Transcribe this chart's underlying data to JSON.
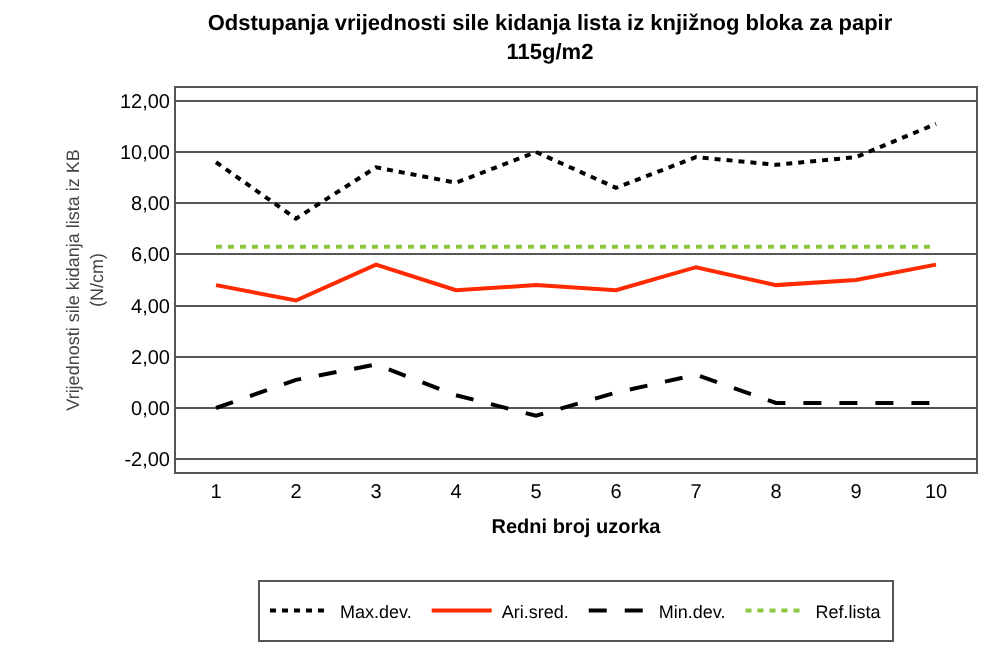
{
  "chart_data": {
    "type": "line",
    "title": "Odstupanja vrijednosti sile kidanja lista iz knjižnog bloka za papir",
    "subtitle": "115g/m2",
    "xlabel": "Redni broj uzorka",
    "ylabel": "Vrijednosti sile kidanja lista iz KB\n(N/cm)",
    "categories": [
      "1",
      "2",
      "3",
      "4",
      "5",
      "6",
      "7",
      "8",
      "9",
      "10"
    ],
    "series": [
      {
        "name": "Max.dev.",
        "color": "#000000",
        "line_style": "dotted",
        "values": [
          9.6,
          7.4,
          9.4,
          8.8,
          10.0,
          8.6,
          9.8,
          9.5,
          9.8,
          11.1
        ]
      },
      {
        "name": "Ari.sred.",
        "color": "#ff2a00",
        "line_style": "solid",
        "values": [
          4.8,
          4.2,
          5.6,
          4.6,
          4.8,
          4.6,
          5.5,
          4.8,
          5.0,
          5.6
        ]
      },
      {
        "name": "Min.dev.",
        "color": "#000000",
        "line_style": "dashed",
        "values": [
          0.0,
          1.1,
          1.7,
          0.5,
          -0.3,
          0.6,
          1.3,
          0.2,
          0.2,
          0.2
        ]
      },
      {
        "name": "Ref.lista",
        "color": "#8cc63f",
        "line_style": "dotted",
        "values": [
          6.3,
          6.3,
          6.3,
          6.3,
          6.3,
          6.3,
          6.3,
          6.3,
          6.3,
          6.3
        ]
      }
    ],
    "ylim": [
      -2.5,
      12.5
    ],
    "yticks": [
      {
        "value": -2,
        "label": "-2,00"
      },
      {
        "value": 0,
        "label": "0,00"
      },
      {
        "value": 2,
        "label": "2,00"
      },
      {
        "value": 4,
        "label": "4,00"
      },
      {
        "value": 6,
        "label": "6,00"
      },
      {
        "value": 8,
        "label": "8,00"
      },
      {
        "value": 10,
        "label": "10,00"
      },
      {
        "value": 12,
        "label": "12,00"
      }
    ],
    "grid": "y",
    "legend": "bottom",
    "marker": "none"
  }
}
